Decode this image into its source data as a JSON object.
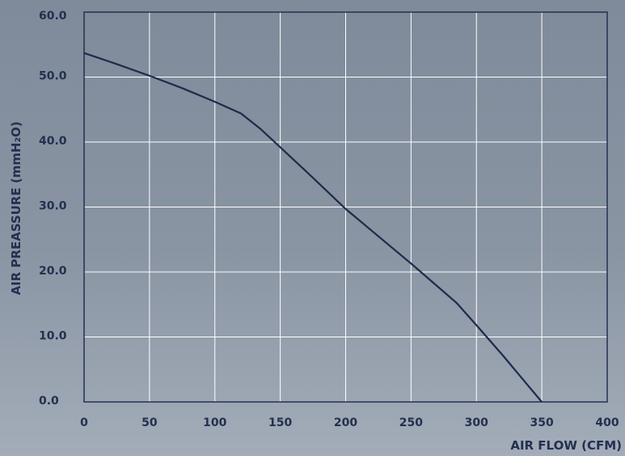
{
  "chart_data": {
    "type": "line",
    "title": "",
    "xlabel": "AIR FLOW (CFM)",
    "ylabel": "AIR PREASSURE (mmH₂O)",
    "xlim": [
      0,
      400
    ],
    "ylim": [
      0,
      60
    ],
    "x_ticks": [
      "0",
      "50",
      "100",
      "150",
      "200",
      "250",
      "300",
      "350",
      "400"
    ],
    "y_ticks": [
      "0.0",
      "10.0",
      "20.0",
      "30.0",
      "40.0",
      "50.0",
      "60.0"
    ],
    "grid": true,
    "series": [
      {
        "x": [
          0,
          25,
          50,
          75,
          100,
          120,
          135,
          150,
          175,
          200,
          225,
          250,
          265,
          285,
          300,
          320,
          340,
          350
        ],
        "y": [
          53.7,
          52.0,
          50.2,
          48.3,
          46.2,
          44.4,
          42.0,
          39.2,
          34.5,
          29.7,
          25.5,
          21.3,
          18.7,
          15.2,
          11.8,
          7.2,
          2.4,
          0.0
        ]
      }
    ],
    "colors": {
      "line": "#1f2a4a",
      "grid": "#ffffff",
      "frame": "#23304f",
      "text": "#23304f"
    }
  }
}
